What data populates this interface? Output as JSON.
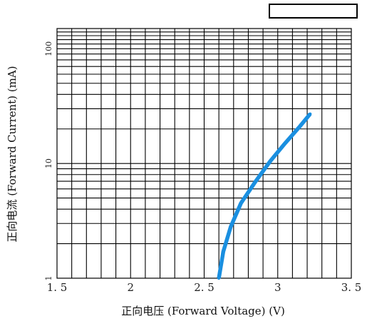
{
  "chart_data": {
    "type": "line",
    "title": "",
    "xlabel": "正向电压 (Forward  Voltage) (V)",
    "ylabel": "正向电流 (Forward  Current) (mA)",
    "x_scale": "linear",
    "y_scale": "log",
    "xlim": [
      1.5,
      3.5
    ],
    "ylim": [
      1,
      150
    ],
    "x_ticks": [
      1.5,
      2,
      2.5,
      3,
      3.5
    ],
    "x_tick_labels": [
      "1. 5",
      "2",
      "2. 5",
      "3",
      "3. 5"
    ],
    "y_ticks": [
      1,
      10,
      100
    ],
    "y_tick_labels": [
      "1",
      "10",
      "100"
    ],
    "grid": true,
    "legend": "none",
    "series": [
      {
        "color": "#1a8fe0",
        "x": [
          2.6,
          2.63,
          2.68,
          2.75,
          2.85,
          2.95,
          3.05,
          3.15,
          3.22
        ],
        "y": [
          1.0,
          1.7,
          2.8,
          4.5,
          7.0,
          10.5,
          15.0,
          21.0,
          27.0
        ]
      }
    ]
  }
}
